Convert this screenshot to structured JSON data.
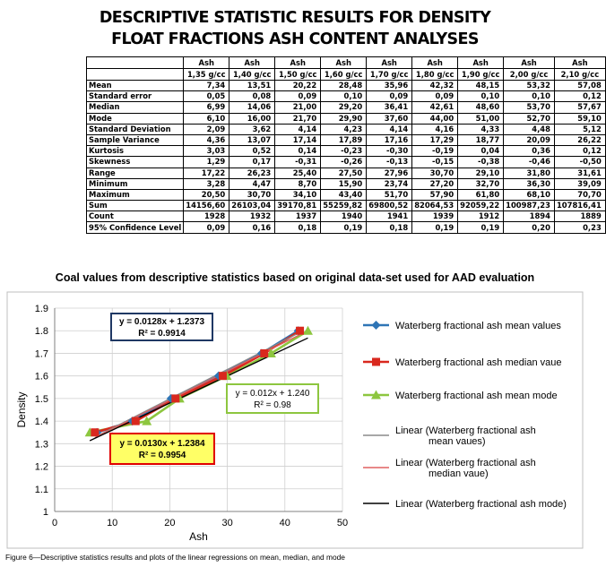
{
  "heading": {
    "line1": "DESCRIPTIVE STATISTIC RESULTS FOR DENSITY",
    "line2": "FLOAT FRACTIONS ASH CONTENT ANALYSES"
  },
  "table": {
    "columns": [
      [
        "Ash",
        "1,35 g/cc"
      ],
      [
        "Ash",
        "1,40 g/cc"
      ],
      [
        "Ash",
        "1,50 g/cc"
      ],
      [
        "Ash",
        "1,60 g/cc"
      ],
      [
        "Ash",
        "1,70 g/cc"
      ],
      [
        "Ash",
        "1,80 g/cc"
      ],
      [
        "Ash",
        "1,90 g/cc"
      ],
      [
        "Ash",
        "2,00 g/cc"
      ],
      [
        "Ash",
        "2,10 g/cc"
      ]
    ],
    "rows": [
      {
        "label": "Mean",
        "values": [
          "7,34",
          "13,51",
          "20,22",
          "28,48",
          "35,96",
          "42,32",
          "48,15",
          "53,32",
          "57,08"
        ]
      },
      {
        "label": "Standard error",
        "values": [
          "0,05",
          "0,08",
          "0,09",
          "0,10",
          "0,09",
          "0,09",
          "0,10",
          "0,10",
          "0,12"
        ]
      },
      {
        "label": "Median",
        "values": [
          "6,99",
          "14,06",
          "21,00",
          "29,20",
          "36,41",
          "42,61",
          "48,60",
          "53,70",
          "57,67"
        ]
      },
      {
        "label": "Mode",
        "values": [
          "6,10",
          "16,00",
          "21,70",
          "29,90",
          "37,60",
          "44,00",
          "51,00",
          "52,70",
          "59,10"
        ]
      },
      {
        "label": "Standard Deviation",
        "values": [
          "2,09",
          "3,62",
          "4,14",
          "4,23",
          "4,14",
          "4,16",
          "4,33",
          "4,48",
          "5,12"
        ]
      },
      {
        "label": "Sample Variance",
        "values": [
          "4,36",
          "13,07",
          "17,14",
          "17,89",
          "17,16",
          "17,29",
          "18,77",
          "20,09",
          "26,22"
        ]
      },
      {
        "label": "Kurtosis",
        "values": [
          "3,03",
          "0,52",
          "0,14",
          "-0,23",
          "-0,30",
          "-0,19",
          "0,04",
          "0,36",
          "0,12"
        ]
      },
      {
        "label": "Skewness",
        "values": [
          "1,29",
          "0,17",
          "-0,31",
          "-0,26",
          "-0,13",
          "-0,15",
          "-0,38",
          "-0,46",
          "-0,50"
        ]
      },
      {
        "label": "Range",
        "values": [
          "17,22",
          "26,23",
          "25,40",
          "27,50",
          "27,96",
          "30,70",
          "29,10",
          "31,80",
          "31,61"
        ]
      },
      {
        "label": "Minimum",
        "values": [
          "3,28",
          "4,47",
          "8,70",
          "15,90",
          "23,74",
          "27,20",
          "32,70",
          "36,30",
          "39,09"
        ]
      },
      {
        "label": "Maximum",
        "values": [
          "20,50",
          "30,70",
          "34,10",
          "43,40",
          "51,70",
          "57,90",
          "61,80",
          "68,10",
          "70,70"
        ]
      },
      {
        "label": "Sum",
        "values": [
          "14156,60",
          "26103,04",
          "39170,81",
          "55259,82",
          "69800,52",
          "82064,53",
          "92059,22",
          "100987,23",
          "107816,41"
        ]
      },
      {
        "label": "Count",
        "values": [
          "1928",
          "1932",
          "1937",
          "1940",
          "1941",
          "1939",
          "1912",
          "1894",
          "1889"
        ]
      },
      {
        "label": "95% Confidence Level",
        "values": [
          "0,09",
          "0,16",
          "0,18",
          "0,19",
          "0,18",
          "0,19",
          "0,19",
          "0,20",
          "0,23"
        ]
      }
    ]
  },
  "chart_data": {
    "type": "scatter",
    "title": "Coal values from descriptive statistics based on original data-set used for AAD evaluation",
    "xlabel": "Ash",
    "ylabel": "Density",
    "xlim": [
      0,
      50
    ],
    "ylim": [
      1,
      1.9
    ],
    "xticks": [
      0,
      10,
      20,
      30,
      40,
      50
    ],
    "yticks": [
      1,
      1.1,
      1.2,
      1.3,
      1.4,
      1.5,
      1.6,
      1.7,
      1.8,
      1.9
    ],
    "grid": true,
    "legend_position": "right",
    "series": [
      {
        "name": "Waterberg fractional ash mean values",
        "marker": "diamond",
        "color": "#2E75B6",
        "x": [
          7.34,
          13.51,
          20.22,
          28.48,
          35.96,
          42.32
        ],
        "y": [
          1.35,
          1.4,
          1.5,
          1.6,
          1.7,
          1.8
        ]
      },
      {
        "name": "Waterberg fractional ash median vaue",
        "marker": "square",
        "color": "#D9281E",
        "x": [
          6.99,
          14.06,
          21.0,
          29.2,
          36.41,
          42.61
        ],
        "y": [
          1.35,
          1.4,
          1.5,
          1.6,
          1.7,
          1.8
        ]
      },
      {
        "name": "Waterberg fractional ash mean mode",
        "marker": "triangle",
        "color": "#8DC63F",
        "x": [
          6.1,
          16.0,
          21.7,
          29.9,
          37.6,
          44.0
        ],
        "y": [
          1.35,
          1.4,
          1.5,
          1.6,
          1.7,
          1.8
        ]
      }
    ],
    "trendlines": [
      {
        "name": "Linear (Waterberg fractional ash mean vaues)",
        "color": "#8a8a8a",
        "slope": 0.013,
        "intercept": 1.2384,
        "x_range": [
          7.34,
          42.32
        ]
      },
      {
        "name": "Linear (Waterberg fractional ash median vaue)",
        "color": "#e06060",
        "slope": 0.0128,
        "intercept": 1.2373,
        "x_range": [
          6.99,
          42.61
        ]
      },
      {
        "name": "Linear (Waterberg fractional ash mode)",
        "color": "#000000",
        "slope": 0.012,
        "intercept": 1.24,
        "x_range": [
          6.1,
          44.0
        ]
      }
    ],
    "annotations": [
      {
        "eq": "y = 0.0128x + 1.2373",
        "r2": "R² = 0.9914",
        "border": "#1F3864",
        "fill": "#ffffff"
      },
      {
        "eq": "y = 0.012x + 1.240",
        "r2": "R² = 0.98",
        "border": "#8DC63F",
        "fill": "#ffffff"
      },
      {
        "eq": "y = 0.0130x + 1.2384",
        "r2": "R² = 0.9954",
        "border": "#E00000",
        "fill": "#FFFF66"
      }
    ]
  },
  "caption": "Figure 6—Descriptive statistics results and plots of the linear regressions on mean, median, and mode"
}
